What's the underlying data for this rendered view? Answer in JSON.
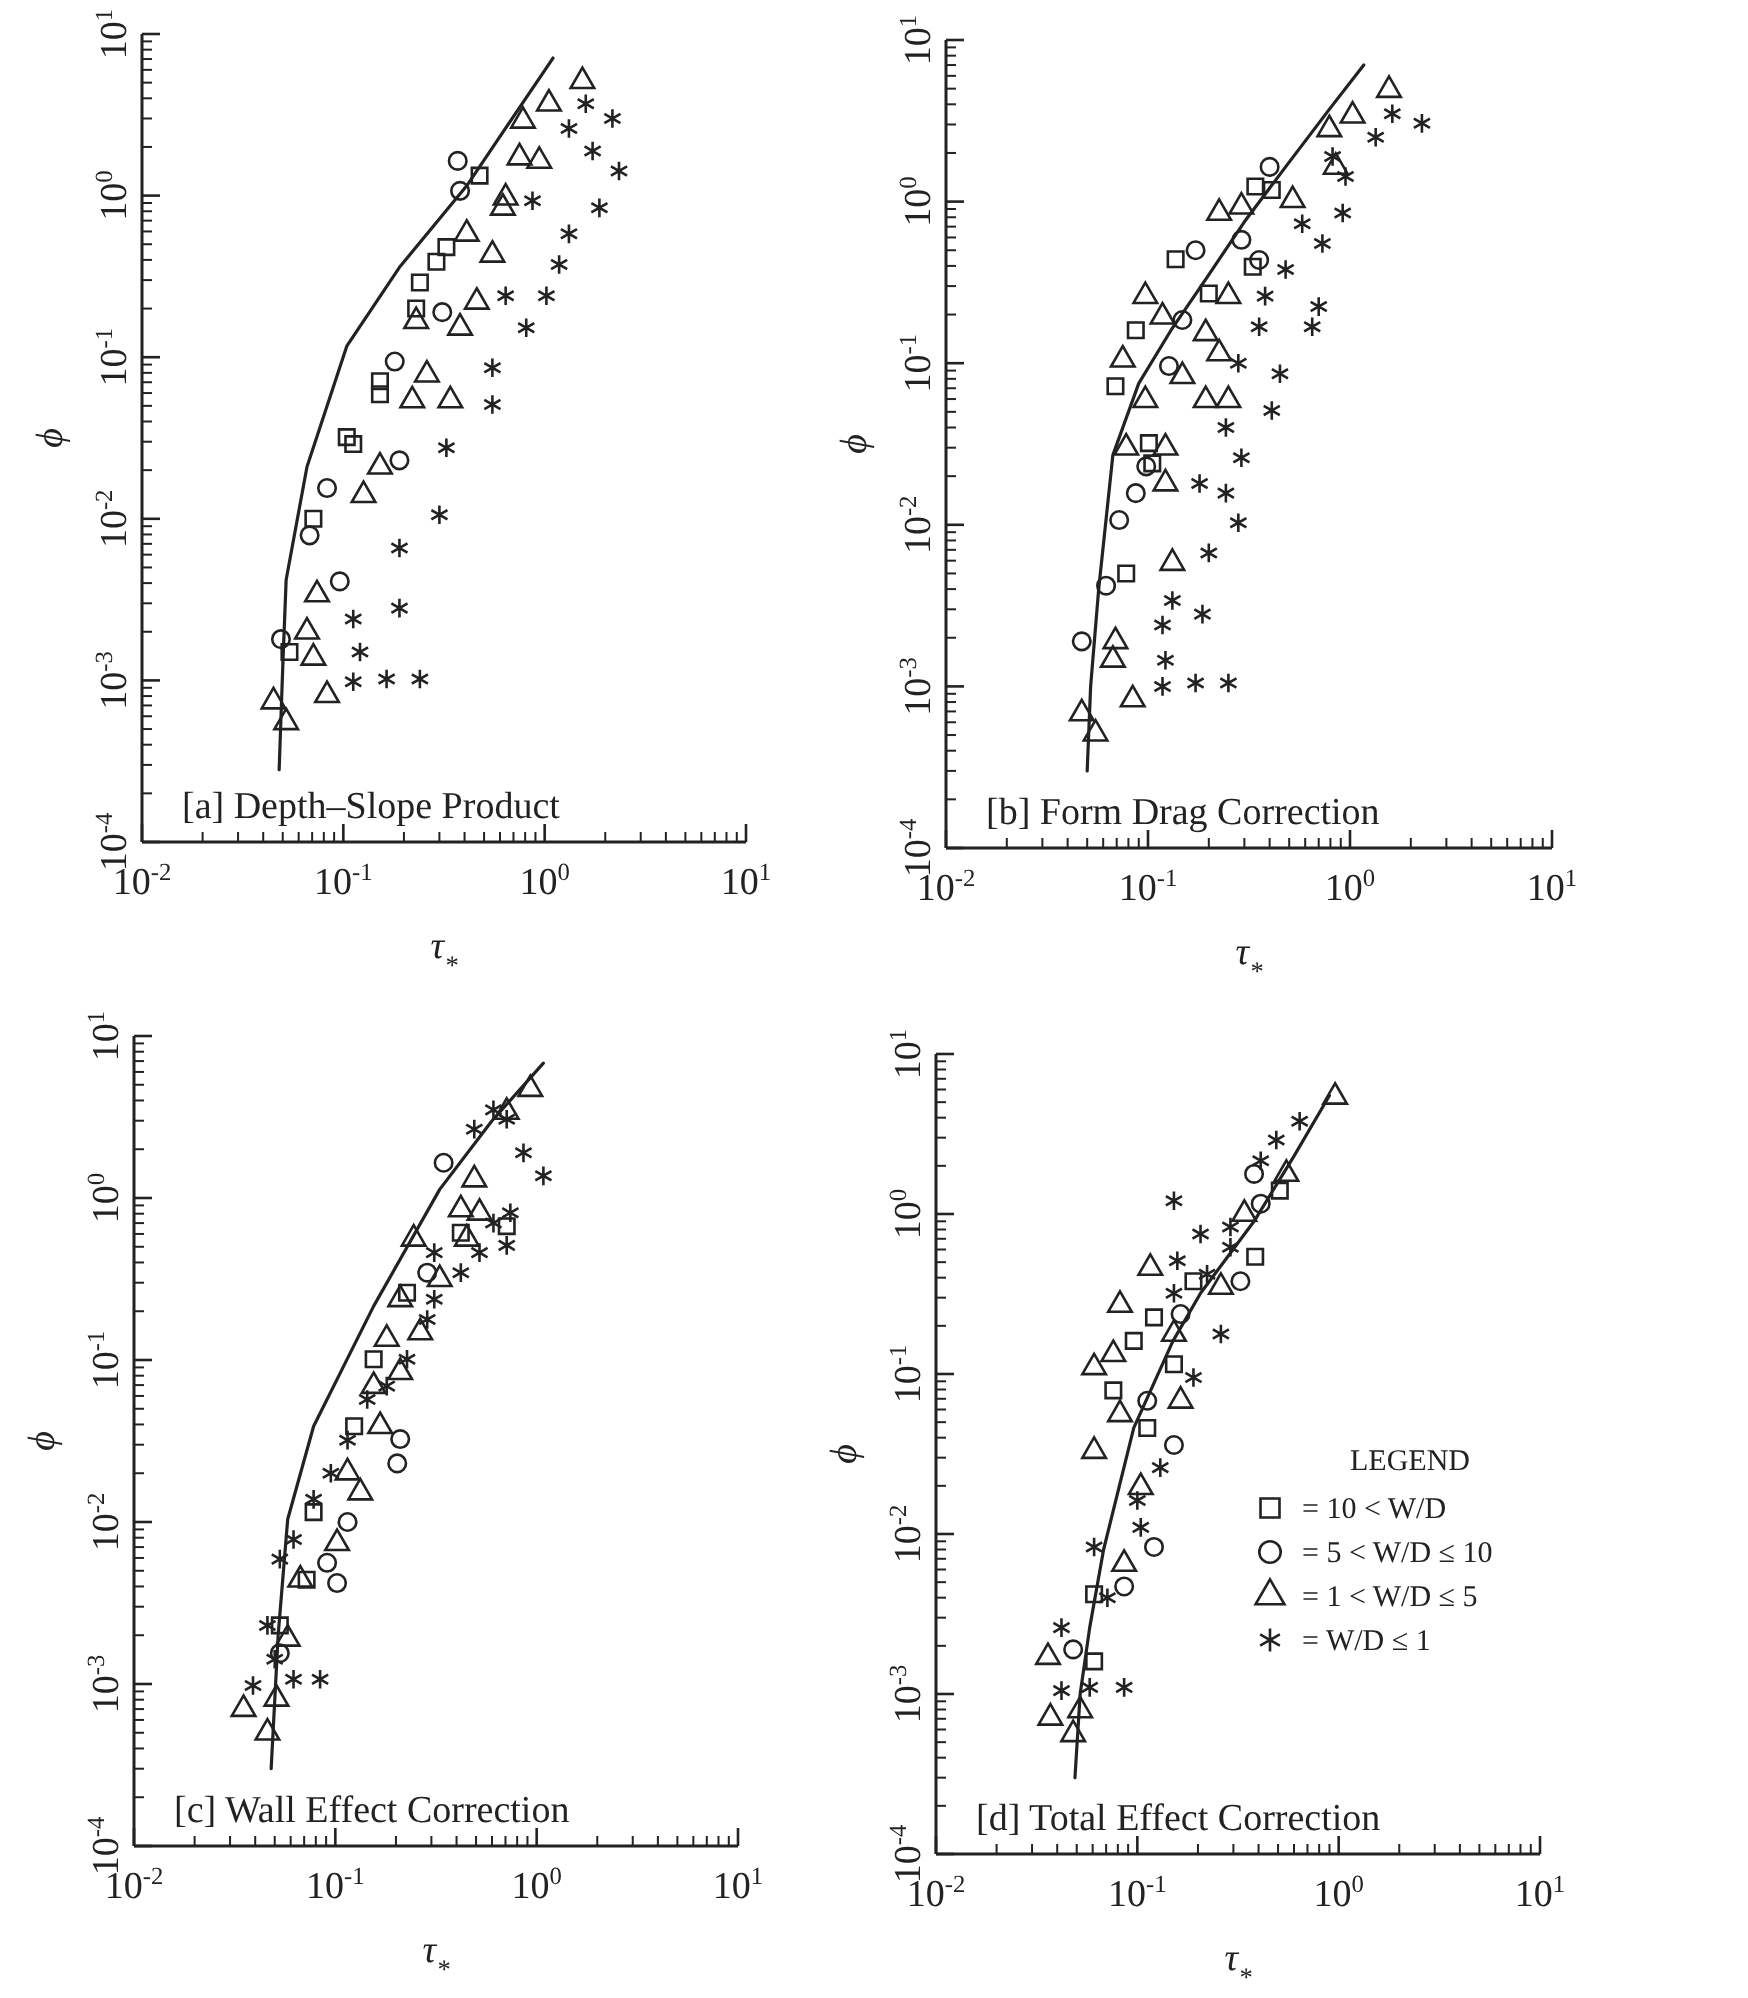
{
  "chart_data": [
    {
      "type": "scatter",
      "title": "[a] Depth–Slope Product",
      "xlabel": "τ$_{*}$",
      "ylabel": "ϕ",
      "log": "xy",
      "xlim": [
        0.01,
        10
      ],
      "ylim": [
        0.0001,
        10
      ],
      "xticks": [
        {
          "value": 0.01,
          "label": "10$^{-2}$"
        },
        {
          "value": 0.1,
          "label": "10$^{-1}$"
        },
        {
          "value": 1,
          "label": "10$^{0}$"
        },
        {
          "value": 10,
          "label": "10$^{1}$"
        }
      ],
      "yticks": [
        {
          "value": 0.0001,
          "label": "10$^{-4}$"
        },
        {
          "value": 0.001,
          "label": "10$^{-3}$"
        },
        {
          "value": 0.01,
          "label": "10$^{-2}$"
        },
        {
          "value": 0.1,
          "label": "10$^{-1}$"
        },
        {
          "value": 1,
          "label": "10$^{0}$"
        },
        {
          "value": 10,
          "label": "10$^{1}$"
        }
      ],
      "series": [
        {
          "type": "line",
          "marker": "none",
          "line_style": "solid",
          "color": "#222222",
          "x": [
            0.048,
            0.05,
            0.052,
            0.066,
            0.104,
            0.19,
            0.41,
            1.1
          ],
          "values": [
            0.00028,
            0.0012,
            0.0042,
            0.021,
            0.117,
            0.36,
            1.15,
            7.1
          ]
        },
        {
          "marker": "square",
          "color": "#222222",
          "x": [
            0.475,
            0.325,
            0.29,
            0.24,
            0.23,
            0.152,
            0.152,
            0.104,
            0.112,
            0.071,
            0.054
          ],
          "values": [
            1.33,
            0.48,
            0.39,
            0.29,
            0.2,
            0.071,
            0.059,
            0.032,
            0.029,
            0.01,
            0.0015
          ]
        },
        {
          "marker": "circle",
          "color": "#222222",
          "x": [
            0.37,
            0.38,
            0.31,
            0.18,
            0.083,
            0.068,
            0.096,
            0.049,
            0.19
          ],
          "values": [
            1.64,
            1.07,
            0.19,
            0.094,
            0.0155,
            0.0079,
            0.0041,
            0.0018,
            0.023
          ]
        },
        {
          "marker": "triangle",
          "color": "#222222",
          "x": [
            1.54,
            1.05,
            0.78,
            0.75,
            0.94,
            0.62,
            0.41,
            0.55,
            0.46,
            0.38,
            0.23,
            0.26,
            0.22,
            0.152,
            0.126,
            0.074,
            0.066,
            0.071,
            0.083,
            0.045,
            0.052,
            0.64,
            0.34
          ],
          "values": [
            5.1,
            3.7,
            2.9,
            1.72,
            1.64,
            0.84,
            0.58,
            0.43,
            0.22,
            0.152,
            0.167,
            0.078,
            0.054,
            0.021,
            0.014,
            0.0034,
            0.002,
            0.00138,
            0.00081,
            0.00074,
            0.00055,
            0.97,
            0.054
          ]
        },
        {
          "marker": "cross",
          "color": "#222222",
          "x": [
            1.6,
            2.17,
            1.32,
            1.73,
            2.34,
            1.87,
            1.32,
            1.02,
            0.81,
            0.55,
            0.55,
            0.325,
            0.3,
            0.19,
            0.19,
            0.112,
            0.121,
            0.112,
            0.164,
            0.24,
            0.87,
            1.18,
            0.64
          ],
          "values": [
            3.7,
            3.0,
            2.6,
            1.89,
            1.42,
            0.84,
            0.58,
            0.24,
            0.152,
            0.086,
            0.051,
            0.0275,
            0.0106,
            0.0066,
            0.0028,
            0.0024,
            0.0015,
            0.00098,
            0.00102,
            0.00102,
            0.93,
            0.375,
            0.24
          ]
        }
      ]
    },
    {
      "type": "scatter",
      "title": "[b] Form Drag Correction",
      "xlabel": "τ$_{*}$",
      "ylabel": "ϕ",
      "log": "xy",
      "xlim": [
        0.01,
        10
      ],
      "ylim": [
        0.0001,
        10
      ],
      "xticks": [
        {
          "value": 0.01,
          "label": "10$^{-2}$"
        },
        {
          "value": 0.1,
          "label": "10$^{-1}$"
        },
        {
          "value": 1,
          "label": "10$^{0}$"
        },
        {
          "value": 10,
          "label": "10$^{1}$"
        }
      ],
      "yticks": [
        {
          "value": 0.0001,
          "label": "10$^{-4}$"
        },
        {
          "value": 0.001,
          "label": "10$^{-3}$"
        },
        {
          "value": 0.01,
          "label": "10$^{-2}$"
        },
        {
          "value": 0.1,
          "label": "10$^{-1}$"
        },
        {
          "value": 1,
          "label": "10$^{0}$"
        },
        {
          "value": 10,
          "label": "10$^{1}$"
        }
      ],
      "series": [
        {
          "type": "line",
          "marker": "none",
          "line_style": "solid",
          "color": "#222222",
          "x": [
            0.05,
            0.052,
            0.057,
            0.067,
            0.09,
            0.13,
            0.193,
            0.3,
            0.48,
            0.8,
            1.17
          ],
          "values": [
            0.0003,
            0.001,
            0.004,
            0.027,
            0.075,
            0.16,
            0.33,
            0.75,
            1.64,
            3.8,
            7.0
          ]
        },
        {
          "marker": "square",
          "color": "#222222",
          "x": [
            0.069,
            0.087,
            0.137,
            0.34,
            0.41,
            0.101,
            0.105,
            0.078,
            0.33,
            0.2
          ],
          "values": [
            0.072,
            0.16,
            0.44,
            1.24,
            1.18,
            0.032,
            0.024,
            0.005,
            0.395,
            0.27
          ]
        },
        {
          "marker": "circle",
          "color": "#222222",
          "x": [
            0.4,
            0.172,
            0.148,
            0.127,
            0.098,
            0.087,
            0.072,
            0.047,
            0.355,
            0.062,
            0.29
          ],
          "values": [
            1.64,
            0.5,
            0.185,
            0.096,
            0.023,
            0.0157,
            0.0107,
            0.0019,
            0.435,
            0.0042,
            0.58
          ]
        },
        {
          "marker": "triangle",
          "color": "#222222",
          "x": [
            1.56,
            1.03,
            0.79,
            0.85,
            0.225,
            0.29,
            0.097,
            0.118,
            0.075,
            0.148,
            0.193,
            0.225,
            0.193,
            0.25,
            0.078,
            0.122,
            0.122,
            0.132,
            0.069,
            0.067,
            0.084,
            0.047,
            0.055,
            0.25,
            0.52,
            0.097
          ],
          "values": [
            4.9,
            3.4,
            2.8,
            1.64,
            0.85,
            0.93,
            0.26,
            0.194,
            0.105,
            0.083,
            0.153,
            0.115,
            0.059,
            0.059,
            0.03,
            0.03,
            0.018,
            0.0058,
            0.0019,
            0.00146,
            0.00083,
            0.00068,
            0.00051,
            0.26,
            1.02,
            0.059
          ]
        },
        {
          "marker": "cross",
          "color": "#222222",
          "x": [
            1.62,
            2.27,
            1.34,
            0.82,
            0.95,
            0.92,
            0.58,
            0.73,
            0.48,
            0.38,
            0.355,
            0.7,
            0.65,
            0.28,
            0.45,
            0.41,
            0.243,
            0.29,
            0.18,
            0.243,
            0.28,
            0.2,
            0.186,
            0.118,
            0.122,
            0.118,
            0.172,
            0.25,
            0.132
          ],
          "values": [
            3.5,
            3.05,
            2.5,
            1.9,
            1.43,
            0.85,
            0.73,
            0.55,
            0.38,
            0.26,
            0.168,
            0.224,
            0.168,
            0.1,
            0.086,
            0.051,
            0.04,
            0.026,
            0.018,
            0.0157,
            0.0103,
            0.0067,
            0.0028,
            0.0024,
            0.00145,
            0.001,
            0.00105,
            0.00105,
            0.0034
          ]
        }
      ]
    },
    {
      "type": "scatter",
      "title": "[c] Wall Effect Correction",
      "xlabel": "τ$_{*}$",
      "ylabel": "ϕ",
      "log": "xy",
      "xlim": [
        0.01,
        10
      ],
      "ylim": [
        0.0001,
        10
      ],
      "xticks": [
        {
          "value": 0.01,
          "label": "10$^{-2}$"
        },
        {
          "value": 0.1,
          "label": "10$^{-1}$"
        },
        {
          "value": 1,
          "label": "10$^{0}$"
        },
        {
          "value": 10,
          "label": "10$^{1}$"
        }
      ],
      "yticks": [
        {
          "value": 0.0001,
          "label": "10$^{-4}$"
        },
        {
          "value": 0.001,
          "label": "10$^{-3}$"
        },
        {
          "value": 0.01,
          "label": "10$^{-2}$"
        },
        {
          "value": 0.1,
          "label": "10$^{-1}$"
        },
        {
          "value": 1,
          "label": "10$^{0}$"
        },
        {
          "value": 10,
          "label": "10$^{1}$"
        }
      ],
      "series": [
        {
          "type": "line",
          "marker": "none",
          "line_style": "solid",
          "color": "#222222",
          "x": [
            0.048,
            0.052,
            0.058,
            0.078,
            0.155,
            0.33,
            0.6,
            1.08
          ],
          "values": [
            0.0003,
            0.002,
            0.0104,
            0.039,
            0.215,
            1.13,
            3.0,
            6.8
          ]
        },
        {
          "marker": "square",
          "color": "#222222",
          "x": [
            0.072,
            0.053,
            0.42,
            0.227,
            0.155,
            0.124,
            0.078,
            0.71
          ],
          "values": [
            0.0044,
            0.0023,
            0.61,
            0.26,
            0.101,
            0.039,
            0.0115,
            0.67
          ]
        },
        {
          "marker": "circle",
          "color": "#222222",
          "x": [
            0.345,
            0.21,
            0.203,
            0.115,
            0.102,
            0.091,
            0.053,
            0.286
          ],
          "values": [
            1.65,
            0.0325,
            0.023,
            0.01,
            0.0042,
            0.0056,
            0.00155,
            0.346
          ]
        },
        {
          "marker": "triangle",
          "color": "#222222",
          "x": [
            0.93,
            0.71,
            0.49,
            0.42,
            0.52,
            0.45,
            0.245,
            0.21,
            0.264,
            0.18,
            0.155,
            0.167,
            0.133,
            0.102,
            0.067,
            0.058,
            0.051,
            0.035,
            0.046,
            0.33,
            0.21,
            0.115
          ],
          "values": [
            4.7,
            3.4,
            1.3,
            0.85,
            0.81,
            0.56,
            0.56,
            0.237,
            0.148,
            0.135,
            0.069,
            0.039,
            0.0152,
            0.0074,
            0.0044,
            0.0019,
            0.00081,
            0.0007,
            0.0005,
            0.315,
            0.084,
            0.0202
          ]
        },
        {
          "marker": "cross",
          "color": "#222222",
          "x": [
            0.61,
            0.71,
            0.49,
            0.86,
            1.08,
            0.74,
            0.71,
            0.52,
            0.42,
            0.31,
            0.286,
            0.227,
            0.18,
            0.144,
            0.115,
            0.095,
            0.078,
            0.062,
            0.053,
            0.046,
            0.05,
            0.062,
            0.084,
            0.039,
            0.61,
            0.31
          ],
          "values": [
            3.5,
            3.06,
            2.66,
            1.9,
            1.37,
            0.81,
            0.51,
            0.46,
            0.346,
            0.237,
            0.178,
            0.101,
            0.069,
            0.057,
            0.032,
            0.02,
            0.0138,
            0.0078,
            0.0059,
            0.0023,
            0.00142,
            0.00107,
            0.00107,
            0.00098,
            0.7,
            0.46
          ]
        }
      ]
    },
    {
      "type": "scatter",
      "title": "[d] Total Effect Correction",
      "xlabel": "τ$_{*}$",
      "ylabel": "ϕ",
      "log": "xy",
      "xlim": [
        0.01,
        10
      ],
      "ylim": [
        0.0001,
        10
      ],
      "legend": "right",
      "legend_title": "LEGEND",
      "xticks": [
        {
          "value": 0.01,
          "label": "10$^{-2}$"
        },
        {
          "value": 0.1,
          "label": "10$^{-1}$"
        },
        {
          "value": 1,
          "label": "10$^{0}$"
        },
        {
          "value": 10,
          "label": "10$^{1}$"
        }
      ],
      "yticks": [
        {
          "value": 0.0001,
          "label": "10$^{-4}$"
        },
        {
          "value": 0.001,
          "label": "10$^{-3}$"
        },
        {
          "value": 0.01,
          "label": "10$^{-2}$"
        },
        {
          "value": 0.1,
          "label": "10$^{-1}$"
        },
        {
          "value": 1,
          "label": "10$^{0}$"
        },
        {
          "value": 10,
          "label": "10$^{1}$"
        }
      ],
      "series": [
        {
          "type": "line",
          "marker": "none",
          "line_style": "solid",
          "color": "#222222",
          "x": [
            0.049,
            0.052,
            0.058,
            0.068,
            0.096,
            0.15,
            0.206,
            0.38,
            0.6,
            0.9
          ],
          "values": [
            0.0003,
            0.001,
            0.0026,
            0.008,
            0.046,
            0.16,
            0.32,
            0.9,
            2.3,
            5.5
          ]
        },
        {
          "name": "= 10 < W/D",
          "marker": "square",
          "color": "#222222",
          "x": [
            0.385,
            0.51,
            0.121,
            0.096,
            0.076,
            0.152,
            0.061,
            0.061,
            0.112,
            0.19
          ],
          "values": [
            0.54,
            1.4,
            0.226,
            0.161,
            0.079,
            0.115,
            0.0042,
            0.0016,
            0.046,
            0.38
          ]
        },
        {
          "name": "= 5 < W/D ≤ 10",
          "marker": "circle",
          "color": "#222222",
          "x": [
            0.325,
            0.38,
            0.41,
            0.152,
            0.086,
            0.048,
            0.112,
            0.164,
            0.121
          ],
          "values": [
            0.38,
            1.78,
            1.16,
            0.036,
            0.0047,
            0.0019,
            0.068,
            0.237,
            0.0083
          ]
        },
        {
          "name": "= 1 < W/D ≤ 5",
          "marker": "triangle",
          "color": "#222222",
          "x": [
            0.96,
            0.55,
            0.34,
            0.26,
            0.116,
            0.082,
            0.076,
            0.061,
            0.152,
            0.082,
            0.061,
            0.164,
            0.086,
            0.036,
            0.037,
            0.052,
            0.048,
            0.104
          ],
          "values": [
            5.4,
            1.78,
            1.0,
            0.35,
            0.46,
            0.27,
            0.133,
            0.11,
            0.178,
            0.056,
            0.033,
            0.068,
            0.0065,
            0.0017,
            0.00071,
            0.00079,
            0.00056,
            0.0196
          ]
        },
        {
          "name": "= W/D ≤ 1",
          "marker": "cross",
          "color": "#222222",
          "x": [
            0.64,
            0.49,
            0.41,
            0.152,
            0.158,
            0.222,
            0.29,
            0.26,
            0.19,
            0.13,
            0.104,
            0.071,
            0.042,
            0.042,
            0.058,
            0.086,
            0.206,
            0.29,
            0.152,
            0.1,
            0.061
          ],
          "values": [
            3.8,
            2.9,
            2.15,
            1.21,
            0.51,
            0.42,
            0.62,
            0.178,
            0.095,
            0.026,
            0.011,
            0.004,
            0.0026,
            0.00105,
            0.0011,
            0.0011,
            0.75,
            0.83,
            0.32,
            0.0162,
            0.0083
          ]
        }
      ]
    }
  ]
}
